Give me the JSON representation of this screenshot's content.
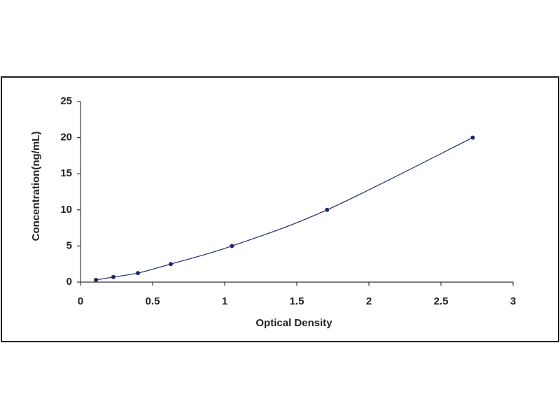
{
  "chart_data": {
    "type": "scatter",
    "xlabel": "Optical Density",
    "ylabel": "Concentration(ng/mL)",
    "x": [
      0.107,
      0.228,
      0.398,
      0.626,
      1.05,
      1.71,
      2.72
    ],
    "values": [
      0.3,
      0.7,
      1.25,
      2.5,
      5,
      10,
      20
    ],
    "color": "#1f2a6e",
    "line": true,
    "xlim": [
      0,
      3
    ],
    "xticks": [
      0,
      0.5,
      1,
      1.5,
      2,
      2.5,
      3
    ],
    "ylim": [
      0,
      25
    ],
    "yticks": [
      0,
      5,
      10,
      15,
      20,
      25
    ],
    "grid": false
  }
}
